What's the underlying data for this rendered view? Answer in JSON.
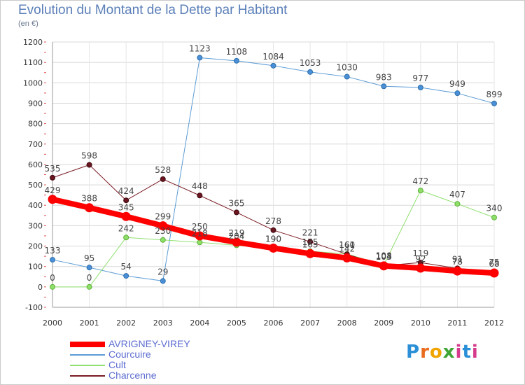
{
  "header": {
    "title": "Evolution du Montant de la Dette par Habitant",
    "subtitle": "(en €)"
  },
  "logo": {
    "text": "Proxiti",
    "letters": [
      "P",
      "r",
      "o",
      "x",
      "i",
      "t",
      "i"
    ]
  },
  "chart_data": {
    "type": "line",
    "title": "Evolution du Montant de la Dette par Habitant",
    "subtitle": "(en €)",
    "xlabel": "",
    "ylabel": "",
    "ylim": [
      -100,
      1200
    ],
    "yticks": [
      -100,
      0,
      100,
      200,
      300,
      400,
      500,
      600,
      700,
      800,
      900,
      1000,
      1100,
      1200
    ],
    "grid": "horizontal",
    "legend_position": "bottom-left",
    "x": [
      "2000",
      "2001",
      "2002",
      "2003",
      "2004",
      "2005",
      "2006",
      "2007",
      "2008",
      "2009",
      "2010",
      "2011",
      "2012"
    ],
    "series": [
      {
        "name": "AVRIGNEY-VIREY",
        "color": "#ff0000",
        "values": [
          429,
          388,
          345,
          299,
          250,
          219,
          190,
          163,
          142,
          103,
          92,
          78,
          68
        ],
        "labels": [
          "429",
          "388",
          "345",
          "299",
          "250",
          "219",
          "190",
          "163",
          "142",
          "103",
          "92",
          "78",
          "68"
        ]
      },
      {
        "name": "Courcuire",
        "color": "#5b9bd5",
        "values": [
          133,
          95,
          54,
          29,
          1123,
          1108,
          1084,
          1053,
          1030,
          983,
          977,
          949,
          899
        ],
        "labels": [
          "133",
          "95",
          "54",
          "29",
          "1123",
          "1108",
          "1084",
          "1053",
          "1030",
          "983",
          "977",
          "949",
          "899"
        ]
      },
      {
        "name": "Cult",
        "color": "#90e070",
        "values": [
          0,
          0,
          242,
          230,
          218,
          204,
          190,
          175,
          161,
          108,
          472,
          407,
          340
        ],
        "labels": [
          "0",
          "0",
          "242",
          "230",
          "218",
          "204",
          "190",
          "175",
          "161",
          "108",
          "472",
          "407",
          "340"
        ]
      },
      {
        "name": "Charcenne",
        "color": "#7a1c24",
        "values": [
          535,
          598,
          424,
          528,
          448,
          365,
          278,
          221,
          160,
          104,
          119,
          91,
          75
        ],
        "labels": [
          "535",
          "598",
          "424",
          "528",
          "448",
          "365",
          "278",
          "221",
          "160",
          "104",
          "119",
          "91",
          "75"
        ]
      }
    ]
  }
}
